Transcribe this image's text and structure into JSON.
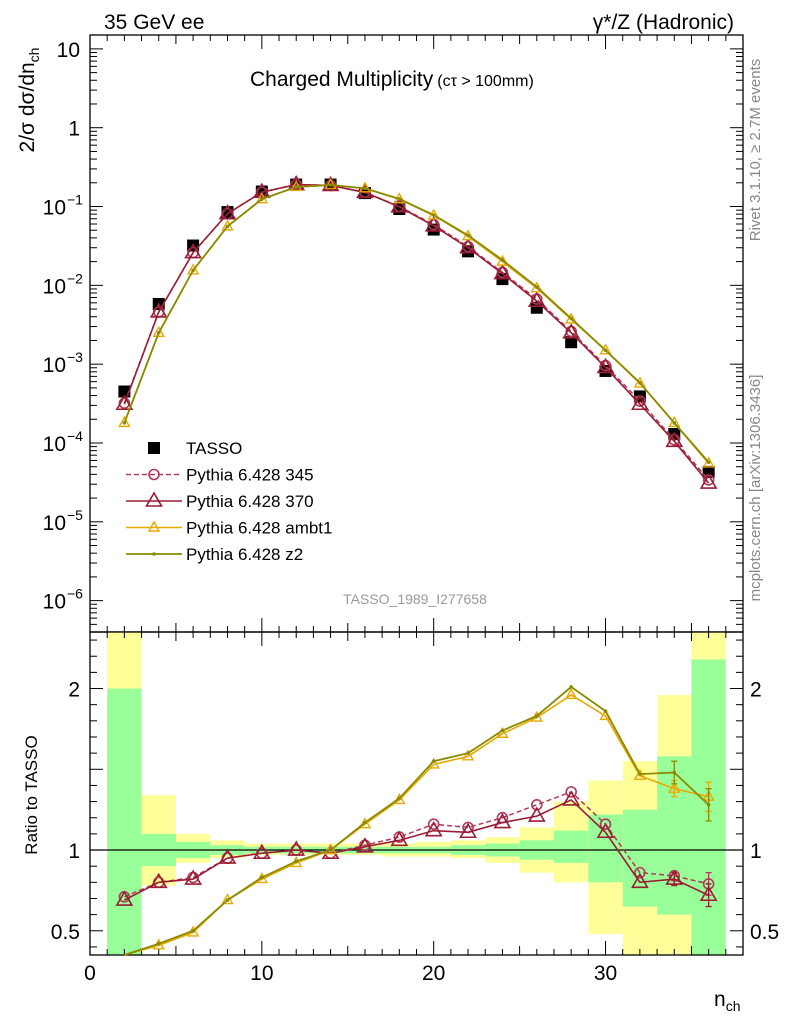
{
  "header": {
    "left": "35 GeV ee",
    "right": "γ*/Z (Hadronic)"
  },
  "side_labels": {
    "rivet": "Rivet 3.1.10, ≥ 2.7M events",
    "site": "mcplots.cern.ch [arXiv:1306.3436]"
  },
  "analysis_id": "TASSO_1989_I277658",
  "colors": {
    "data": "#000000",
    "p345": "#b03a5a",
    "p370": "#9b1c35",
    "ambt1": "#e8a800",
    "z2": "#8a8a00",
    "band_inner": "#99ff99",
    "band_outer": "#ffff99"
  },
  "chart_data": [
    {
      "type": "line",
      "title": "Charged Multiplicity",
      "title_suffix": "(cτ > 100mm)",
      "ylabel": "2/σ dσ/dn",
      "ylabel_sub": "ch",
      "yscale": "log",
      "ylim": [
        4e-07,
        15
      ],
      "xlim": [
        0,
        38
      ],
      "yticks": [
        {
          "v": 10,
          "label": "10",
          "exp": ""
        },
        {
          "v": 1,
          "label": "1",
          "exp": ""
        },
        {
          "v": 0.1,
          "label": "10",
          "exp": "−1"
        },
        {
          "v": 0.01,
          "label": "10",
          "exp": "−2"
        },
        {
          "v": 0.001,
          "label": "10",
          "exp": "−3"
        },
        {
          "v": 0.0001,
          "label": "10",
          "exp": "−4"
        },
        {
          "v": 1e-05,
          "label": "10",
          "exp": "−5"
        },
        {
          "v": 1e-06,
          "label": "10",
          "exp": "−6"
        }
      ],
      "legend_position": "bottom-left",
      "series": [
        {
          "name": "TASSO",
          "key": "data",
          "x": [
            2,
            4,
            6,
            8,
            10,
            12,
            14,
            16,
            18,
            20,
            22,
            24,
            26,
            28,
            30,
            32,
            34,
            36
          ],
          "y": [
            0.00045,
            0.0058,
            0.032,
            0.085,
            0.155,
            0.19,
            0.19,
            0.148,
            0.093,
            0.051,
            0.027,
            0.012,
            0.0052,
            0.0019,
            0.00082,
            0.00039,
            0.00013,
            4.3e-05
          ]
        },
        {
          "name": "Pythia 6.428 345",
          "key": "p345",
          "x": [
            2,
            4,
            6,
            8,
            10,
            12,
            14,
            16,
            18,
            20,
            22,
            24,
            26,
            28,
            30,
            32,
            34,
            36
          ],
          "y": [
            0.00032,
            0.0046,
            0.026,
            0.081,
            0.152,
            0.19,
            0.185,
            0.152,
            0.1,
            0.059,
            0.031,
            0.0146,
            0.0067,
            0.0026,
            0.00096,
            0.00034,
            0.00011,
            3.4e-05
          ]
        },
        {
          "name": "Pythia 6.428 370",
          "key": "p370",
          "x": [
            2,
            4,
            6,
            8,
            10,
            12,
            14,
            16,
            18,
            20,
            22,
            24,
            26,
            28,
            30,
            32,
            34,
            36
          ],
          "y": [
            0.00031,
            0.0046,
            0.026,
            0.081,
            0.152,
            0.19,
            0.185,
            0.151,
            0.099,
            0.057,
            0.03,
            0.0141,
            0.0063,
            0.0025,
            0.00091,
            0.00031,
            0.000105,
            3.1e-05
          ]
        },
        {
          "name": "Pythia 6.428 ambt1",
          "key": "ambt1",
          "x": [
            2,
            4,
            6,
            8,
            10,
            12,
            14,
            16,
            18,
            20,
            22,
            24,
            26,
            28,
            30,
            32,
            34,
            36
          ],
          "y": [
            0.00018,
            0.0025,
            0.0155,
            0.056,
            0.124,
            0.177,
            0.188,
            0.17,
            0.124,
            0.077,
            0.042,
            0.02,
            0.0092,
            0.0037,
            0.0015,
            0.00057,
            0.00018,
            5.5e-05
          ]
        },
        {
          "name": "Pythia 6.428 z2",
          "key": "z2",
          "x": [
            2,
            4,
            6,
            8,
            10,
            12,
            14,
            16,
            18,
            20,
            22,
            24,
            26,
            28,
            30,
            32,
            34,
            36
          ],
          "y": [
            0.00018,
            0.0025,
            0.0155,
            0.056,
            0.124,
            0.177,
            0.188,
            0.17,
            0.125,
            0.078,
            0.043,
            0.021,
            0.0095,
            0.0038,
            0.0015,
            0.00058,
            0.00018,
            5.7e-05
          ]
        }
      ]
    },
    {
      "type": "line",
      "ylabel": "Ratio to TASSO",
      "xlabel": "n",
      "xlabel_sub": "ch",
      "xlim": [
        0,
        38
      ],
      "ylim": [
        0.35,
        2.35
      ],
      "xticks": [
        0,
        10,
        20,
        30
      ],
      "yticks": [
        0.5,
        1,
        2
      ],
      "reference_line": 1,
      "bands": [
        {
          "x0": 1,
          "x1": 3,
          "inner": [
            0.35,
            2.0
          ],
          "outer": [
            0.35,
            2.35
          ]
        },
        {
          "x0": 3,
          "x1": 5,
          "inner": [
            0.9,
            1.1
          ],
          "outer": [
            0.78,
            1.34
          ]
        },
        {
          "x0": 5,
          "x1": 7,
          "inner": [
            0.95,
            1.05
          ],
          "outer": [
            0.92,
            1.1
          ]
        },
        {
          "x0": 7,
          "x1": 9,
          "inner": [
            0.97,
            1.03
          ],
          "outer": [
            0.95,
            1.06
          ]
        },
        {
          "x0": 9,
          "x1": 11,
          "inner": [
            0.98,
            1.02
          ],
          "outer": [
            0.97,
            1.04
          ]
        },
        {
          "x0": 11,
          "x1": 13,
          "inner": [
            0.98,
            1.02
          ],
          "outer": [
            0.97,
            1.04
          ]
        },
        {
          "x0": 13,
          "x1": 15,
          "inner": [
            0.98,
            1.02
          ],
          "outer": [
            0.97,
            1.04
          ]
        },
        {
          "x0": 15,
          "x1": 17,
          "inner": [
            0.98,
            1.02
          ],
          "outer": [
            0.97,
            1.04
          ]
        },
        {
          "x0": 17,
          "x1": 19,
          "inner": [
            0.98,
            1.02
          ],
          "outer": [
            0.96,
            1.04
          ]
        },
        {
          "x0": 19,
          "x1": 21,
          "inner": [
            0.98,
            1.02
          ],
          "outer": [
            0.96,
            1.05
          ]
        },
        {
          "x0": 21,
          "x1": 23,
          "inner": [
            0.97,
            1.03
          ],
          "outer": [
            0.95,
            1.06
          ]
        },
        {
          "x0": 23,
          "x1": 25,
          "inner": [
            0.96,
            1.04
          ],
          "outer": [
            0.92,
            1.08
          ]
        },
        {
          "x0": 25,
          "x1": 27,
          "inner": [
            0.94,
            1.06
          ],
          "outer": [
            0.86,
            1.14
          ]
        },
        {
          "x0": 27,
          "x1": 29,
          "inner": [
            0.92,
            1.12
          ],
          "outer": [
            0.8,
            1.3
          ]
        },
        {
          "x0": 29,
          "x1": 31,
          "inner": [
            0.8,
            1.22
          ],
          "outer": [
            0.48,
            1.43
          ]
        },
        {
          "x0": 31,
          "x1": 33,
          "inner": [
            0.65,
            1.25
          ],
          "outer": [
            0.35,
            1.55
          ]
        },
        {
          "x0": 33,
          "x1": 35,
          "inner": [
            0.6,
            1.58
          ],
          "outer": [
            0.35,
            1.96
          ]
        },
        {
          "x0": 35,
          "x1": 37,
          "inner": [
            0.35,
            2.18
          ],
          "outer": [
            0.35,
            2.35
          ]
        }
      ],
      "series": [
        {
          "name": "Pythia 6.428 345",
          "key": "p345",
          "x": [
            2,
            4,
            6,
            8,
            10,
            12,
            14,
            16,
            18,
            20,
            22,
            24,
            26,
            28,
            30,
            32,
            34,
            36
          ],
          "y": [
            0.71,
            0.8,
            0.83,
            0.95,
            0.98,
            1.0,
            0.98,
            1.03,
            1.08,
            1.16,
            1.14,
            1.2,
            1.28,
            1.36,
            1.16,
            0.86,
            0.84,
            0.79
          ],
          "err": [
            0,
            0,
            0,
            0,
            0,
            0,
            0,
            0,
            0,
            0,
            0,
            0,
            0,
            0,
            0,
            0,
            0.03,
            0.07
          ]
        },
        {
          "name": "Pythia 6.428 370",
          "key": "p370",
          "x": [
            2,
            4,
            6,
            8,
            10,
            12,
            14,
            16,
            18,
            20,
            22,
            24,
            26,
            28,
            30,
            32,
            34,
            36
          ],
          "y": [
            0.69,
            0.8,
            0.82,
            0.95,
            0.98,
            1.0,
            0.98,
            1.02,
            1.06,
            1.12,
            1.11,
            1.17,
            1.21,
            1.31,
            1.11,
            0.8,
            0.82,
            0.72
          ],
          "err": [
            0,
            0,
            0,
            0,
            0,
            0,
            0,
            0,
            0,
            0,
            0,
            0,
            0,
            0,
            0,
            0,
            0.04,
            0.07
          ]
        },
        {
          "name": "Pythia 6.428 ambt1",
          "key": "ambt1",
          "x": [
            2,
            4,
            6,
            8,
            10,
            12,
            14,
            16,
            18,
            20,
            22,
            24,
            26,
            28,
            30,
            32,
            34,
            36
          ],
          "y": [
            0.3,
            0.41,
            0.49,
            0.69,
            0.82,
            0.92,
            1.0,
            1.16,
            1.31,
            1.53,
            1.58,
            1.72,
            1.82,
            1.96,
            1.83,
            1.46,
            1.38,
            1.33
          ],
          "err": [
            0,
            0,
            0,
            0,
            0,
            0,
            0,
            0,
            0,
            0,
            0,
            0,
            0,
            0,
            0,
            0,
            0.05,
            0.09
          ]
        },
        {
          "name": "Pythia 6.428 z2",
          "key": "z2",
          "x": [
            2,
            4,
            6,
            8,
            10,
            12,
            14,
            16,
            18,
            20,
            22,
            24,
            26,
            28,
            30,
            32,
            34,
            36
          ],
          "y": [
            0.3,
            0.42,
            0.5,
            0.69,
            0.83,
            0.93,
            1.0,
            1.17,
            1.32,
            1.55,
            1.6,
            1.74,
            1.83,
            2.01,
            1.86,
            1.47,
            1.48,
            1.28
          ],
          "err": [
            0,
            0,
            0,
            0,
            0,
            0,
            0,
            0,
            0,
            0,
            0,
            0,
            0,
            0,
            0,
            0,
            0.07,
            0.1
          ]
        }
      ]
    }
  ]
}
